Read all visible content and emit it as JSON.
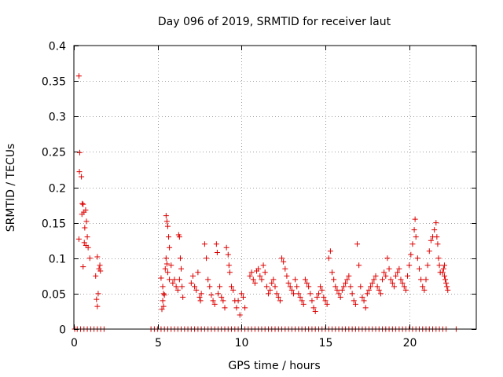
{
  "chart_data": {
    "type": "scatter",
    "title": "Day 096 of 2019, SRMTID for receiver laut",
    "xlabel": "GPS time / hours",
    "ylabel": "SRMTID / TECUs",
    "xlim": [
      0,
      24
    ],
    "ylim": [
      0,
      0.4
    ],
    "x_ticks": [
      0,
      5,
      10,
      15,
      20
    ],
    "y_ticks": [
      0,
      0.05,
      0.1,
      0.15,
      0.2,
      0.25,
      0.3,
      0.35,
      0.4
    ],
    "x_tick_labels": [
      "0",
      "5",
      "10",
      "15",
      "20"
    ],
    "y_tick_labels": [
      "0",
      "0.05",
      "0.1",
      "0.15",
      "0.2",
      "0.25",
      "0.3",
      "0.35",
      "0.4"
    ],
    "grid": true,
    "marker": "+",
    "color": "#dd0000",
    "grid_color": "#a0a0a0",
    "series": [
      {
        "name": "SRMTID",
        "points": [
          [
            0.3,
            0.357
          ],
          [
            0.35,
            0.249
          ],
          [
            0.33,
            0.222
          ],
          [
            0.45,
            0.215
          ],
          [
            0.5,
            0.177
          ],
          [
            0.55,
            0.176
          ],
          [
            0.6,
            0.165
          ],
          [
            0.7,
            0.168
          ],
          [
            0.48,
            0.162
          ],
          [
            0.65,
            0.143
          ],
          [
            0.75,
            0.152
          ],
          [
            0.8,
            0.13
          ],
          [
            0.3,
            0.127
          ],
          [
            0.62,
            0.122
          ],
          [
            0.72,
            0.118
          ],
          [
            0.85,
            0.115
          ],
          [
            0.95,
            0.1
          ],
          [
            0.55,
            0.088
          ],
          [
            1.4,
            0.102
          ],
          [
            1.55,
            0.09
          ],
          [
            1.5,
            0.085
          ],
          [
            1.58,
            0.082
          ],
          [
            1.45,
            0.05
          ],
          [
            1.3,
            0.075
          ],
          [
            1.35,
            0.042
          ],
          [
            1.4,
            0.032
          ],
          [
            5.2,
            0.072
          ],
          [
            5.3,
            0.06
          ],
          [
            5.35,
            0.05
          ],
          [
            5.4,
            0.048
          ],
          [
            5.45,
            0.085
          ],
          [
            5.5,
            0.16
          ],
          [
            5.55,
            0.152
          ],
          [
            5.6,
            0.145
          ],
          [
            5.65,
            0.13
          ],
          [
            5.7,
            0.115
          ],
          [
            5.5,
            0.1
          ],
          [
            5.55,
            0.092
          ],
          [
            5.6,
            0.08
          ],
          [
            5.7,
            0.07
          ],
          [
            5.8,
            0.09
          ],
          [
            5.9,
            0.065
          ],
          [
            6.0,
            0.07
          ],
          [
            6.1,
            0.06
          ],
          [
            5.3,
            0.04
          ],
          [
            5.35,
            0.032
          ],
          [
            5.25,
            0.028
          ],
          [
            6.2,
            0.055
          ],
          [
            6.25,
            0.133
          ],
          [
            6.3,
            0.13
          ],
          [
            6.35,
            0.1
          ],
          [
            6.4,
            0.085
          ],
          [
            6.45,
            0.06
          ],
          [
            6.5,
            0.045
          ],
          [
            6.3,
            0.07
          ],
          [
            7.0,
            0.065
          ],
          [
            7.1,
            0.075
          ],
          [
            7.2,
            0.06
          ],
          [
            7.3,
            0.055
          ],
          [
            7.4,
            0.08
          ],
          [
            7.5,
            0.045
          ],
          [
            7.55,
            0.04
          ],
          [
            7.6,
            0.05
          ],
          [
            7.8,
            0.12
          ],
          [
            7.9,
            0.1
          ],
          [
            8.0,
            0.07
          ],
          [
            8.1,
            0.06
          ],
          [
            8.2,
            0.048
          ],
          [
            8.3,
            0.04
          ],
          [
            8.4,
            0.035
          ],
          [
            8.5,
            0.12
          ],
          [
            8.55,
            0.108
          ],
          [
            8.6,
            0.05
          ],
          [
            8.7,
            0.06
          ],
          [
            8.8,
            0.045
          ],
          [
            8.9,
            0.04
          ],
          [
            9.0,
            0.03
          ],
          [
            9.1,
            0.115
          ],
          [
            9.2,
            0.105
          ],
          [
            9.25,
            0.09
          ],
          [
            9.3,
            0.08
          ],
          [
            9.4,
            0.06
          ],
          [
            9.5,
            0.055
          ],
          [
            9.6,
            0.04
          ],
          [
            9.7,
            0.03
          ],
          [
            9.8,
            0.04
          ],
          [
            9.9,
            0.02
          ],
          [
            10.0,
            0.05
          ],
          [
            10.1,
            0.045
          ],
          [
            10.2,
            0.03
          ],
          [
            10.5,
            0.075
          ],
          [
            10.6,
            0.08
          ],
          [
            10.7,
            0.07
          ],
          [
            10.8,
            0.065
          ],
          [
            10.9,
            0.082
          ],
          [
            11.0,
            0.085
          ],
          [
            11.1,
            0.075
          ],
          [
            11.2,
            0.07
          ],
          [
            11.3,
            0.09
          ],
          [
            11.4,
            0.08
          ],
          [
            11.5,
            0.06
          ],
          [
            11.6,
            0.05
          ],
          [
            11.7,
            0.055
          ],
          [
            11.8,
            0.065
          ],
          [
            11.9,
            0.07
          ],
          [
            12.0,
            0.06
          ],
          [
            12.1,
            0.05
          ],
          [
            12.2,
            0.045
          ],
          [
            12.3,
            0.04
          ],
          [
            12.4,
            0.1
          ],
          [
            12.5,
            0.095
          ],
          [
            12.6,
            0.085
          ],
          [
            12.7,
            0.075
          ],
          [
            12.8,
            0.065
          ],
          [
            12.9,
            0.06
          ],
          [
            13.0,
            0.055
          ],
          [
            13.1,
            0.05
          ],
          [
            13.2,
            0.07
          ],
          [
            13.3,
            0.06
          ],
          [
            13.4,
            0.05
          ],
          [
            13.5,
            0.045
          ],
          [
            13.6,
            0.04
          ],
          [
            13.7,
            0.035
          ],
          [
            13.8,
            0.07
          ],
          [
            13.9,
            0.065
          ],
          [
            14.0,
            0.06
          ],
          [
            14.1,
            0.05
          ],
          [
            14.2,
            0.04
          ],
          [
            14.3,
            0.03
          ],
          [
            14.4,
            0.025
          ],
          [
            14.5,
            0.045
          ],
          [
            14.6,
            0.05
          ],
          [
            14.7,
            0.06
          ],
          [
            14.8,
            0.055
          ],
          [
            14.9,
            0.045
          ],
          [
            15.0,
            0.04
          ],
          [
            15.1,
            0.035
          ],
          [
            15.2,
            0.1
          ],
          [
            15.3,
            0.11
          ],
          [
            15.4,
            0.08
          ],
          [
            15.5,
            0.07
          ],
          [
            15.6,
            0.06
          ],
          [
            15.7,
            0.055
          ],
          [
            15.8,
            0.05
          ],
          [
            15.9,
            0.045
          ],
          [
            16.0,
            0.055
          ],
          [
            16.1,
            0.06
          ],
          [
            16.2,
            0.065
          ],
          [
            16.3,
            0.07
          ],
          [
            16.4,
            0.075
          ],
          [
            16.5,
            0.06
          ],
          [
            16.6,
            0.05
          ],
          [
            16.7,
            0.04
          ],
          [
            16.8,
            0.035
          ],
          [
            16.9,
            0.12
          ],
          [
            17.0,
            0.09
          ],
          [
            17.1,
            0.06
          ],
          [
            17.2,
            0.045
          ],
          [
            17.3,
            0.04
          ],
          [
            17.4,
            0.03
          ],
          [
            17.5,
            0.05
          ],
          [
            17.6,
            0.055
          ],
          [
            17.7,
            0.06
          ],
          [
            17.8,
            0.065
          ],
          [
            17.9,
            0.07
          ],
          [
            18.0,
            0.075
          ],
          [
            18.1,
            0.06
          ],
          [
            18.2,
            0.055
          ],
          [
            18.3,
            0.05
          ],
          [
            18.4,
            0.07
          ],
          [
            18.5,
            0.08
          ],
          [
            18.6,
            0.075
          ],
          [
            18.7,
            0.1
          ],
          [
            18.8,
            0.085
          ],
          [
            18.9,
            0.07
          ],
          [
            19.0,
            0.065
          ],
          [
            19.1,
            0.06
          ],
          [
            19.2,
            0.075
          ],
          [
            19.3,
            0.08
          ],
          [
            19.4,
            0.085
          ],
          [
            19.5,
            0.07
          ],
          [
            19.6,
            0.065
          ],
          [
            19.7,
            0.06
          ],
          [
            19.8,
            0.055
          ],
          [
            19.9,
            0.075
          ],
          [
            20.0,
            0.09
          ],
          [
            20.1,
            0.105
          ],
          [
            20.2,
            0.12
          ],
          [
            20.3,
            0.14
          ],
          [
            20.35,
            0.155
          ],
          [
            20.4,
            0.13
          ],
          [
            20.5,
            0.1
          ],
          [
            20.6,
            0.085
          ],
          [
            20.7,
            0.07
          ],
          [
            20.8,
            0.06
          ],
          [
            20.9,
            0.055
          ],
          [
            21.0,
            0.07
          ],
          [
            21.1,
            0.09
          ],
          [
            21.2,
            0.11
          ],
          [
            21.3,
            0.125
          ],
          [
            21.4,
            0.13
          ],
          [
            21.5,
            0.14
          ],
          [
            21.6,
            0.15
          ],
          [
            21.65,
            0.13
          ],
          [
            21.7,
            0.12
          ],
          [
            21.75,
            0.1
          ],
          [
            21.8,
            0.09
          ],
          [
            21.85,
            0.08
          ],
          [
            22.0,
            0.08
          ],
          [
            22.1,
            0.075
          ],
          [
            22.15,
            0.07
          ],
          [
            22.2,
            0.065
          ],
          [
            22.25,
            0.06
          ],
          [
            22.3,
            0.055
          ],
          [
            22.05,
            0.085
          ],
          [
            22.1,
            0.09
          ]
        ],
        "zero_points": [
          0.05,
          0.2,
          0.4,
          0.6,
          0.8,
          1.0,
          1.2,
          1.4,
          1.6,
          1.8,
          4.6,
          4.8,
          5.0,
          5.2,
          5.4,
          5.6,
          5.8,
          6.0,
          6.2,
          6.4,
          6.6,
          6.8,
          7.0,
          7.2,
          7.4,
          7.6,
          7.8,
          8.0,
          8.2,
          8.4,
          8.6,
          8.8,
          9.0,
          9.2,
          9.4,
          9.6,
          9.8,
          10.0,
          10.2,
          10.4,
          10.6,
          10.8,
          11.0,
          11.2,
          11.4,
          11.6,
          11.8,
          12.0,
          12.2,
          12.4,
          12.6,
          12.8,
          13.0,
          13.2,
          13.4,
          13.6,
          13.8,
          14.0,
          14.2,
          14.4,
          14.6,
          14.8,
          15.0,
          15.2,
          15.4,
          15.6,
          15.8,
          16.0,
          16.2,
          16.4,
          16.6,
          16.8,
          17.0,
          17.2,
          17.4,
          17.6,
          17.8,
          18.0,
          18.2,
          18.4,
          18.6,
          18.8,
          19.0,
          19.2,
          19.4,
          19.6,
          19.8,
          20.0,
          20.2,
          20.4,
          20.6,
          20.8,
          21.0,
          21.2,
          21.4,
          21.6,
          21.8,
          22.0,
          22.2,
          22.8
        ]
      }
    ]
  }
}
